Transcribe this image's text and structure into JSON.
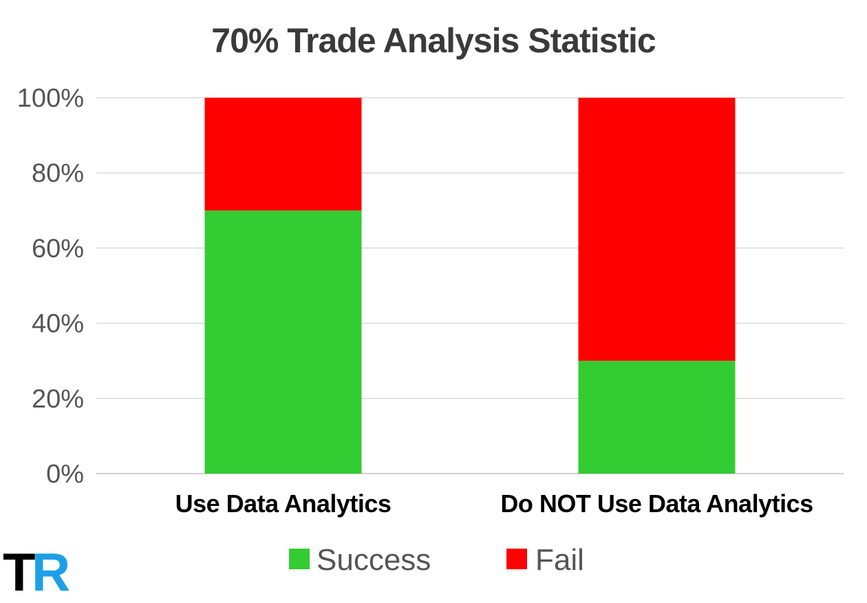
{
  "chart_data": {
    "type": "bar",
    "stacked": true,
    "title": "70% Trade Analysis Statistic",
    "categories": [
      "Use Data Analytics",
      "Do NOT Use Data Analytics"
    ],
    "series": [
      {
        "name": "Success",
        "values": [
          70,
          30
        ],
        "color": "#33cc33"
      },
      {
        "name": "Fail",
        "values": [
          30,
          70
        ],
        "color": "#ff0000"
      }
    ],
    "ylim": [
      0,
      100
    ],
    "yticks": [
      "0%",
      "20%",
      "40%",
      "60%",
      "80%",
      "100%"
    ],
    "ytick_values": [
      0,
      20,
      40,
      60,
      80,
      100
    ],
    "grid": true,
    "legend_position": "bottom"
  },
  "logo": {
    "letter1": "T",
    "letter2": "R",
    "letter1_color": "#000000",
    "letter2_color": "#1ea0e6"
  }
}
